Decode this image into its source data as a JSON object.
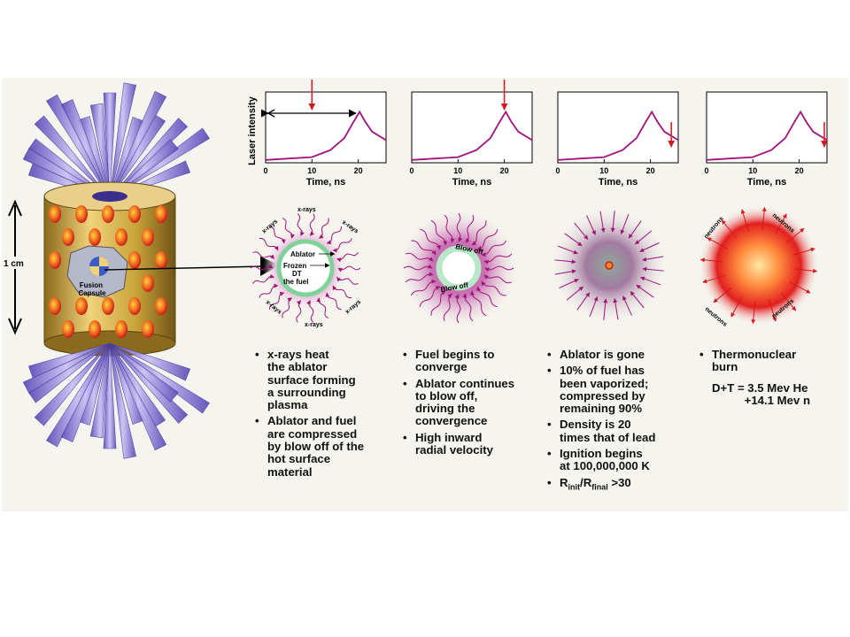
{
  "hohlraum": {
    "size_label": "1 cm",
    "capsule_label": "Fusion Capsule"
  },
  "plots": [
    {
      "ylabel": "Laser intensity",
      "xlabel": "Time, ns",
      "ticks": [
        "0",
        "10",
        "20"
      ],
      "marker_time": 10,
      "has_range_arrow": true
    },
    {
      "ylabel": "",
      "xlabel": "Time, ns",
      "ticks": [
        "0",
        "10",
        "20"
      ],
      "marker_time": 20,
      "has_range_arrow": false
    },
    {
      "ylabel": "",
      "xlabel": "Time, ns",
      "ticks": [
        "0",
        "10",
        "20"
      ],
      "marker_time": 24.5,
      "has_range_arrow": false
    },
    {
      "ylabel": "",
      "xlabel": "Time, ns",
      "ticks": [
        "0",
        "10",
        "20"
      ],
      "marker_time": 25.5,
      "has_range_arrow": false
    }
  ],
  "pulse_shape": {
    "x": [
      0,
      5,
      10,
      14,
      17,
      19,
      20.3,
      21.5,
      23,
      26
    ],
    "y": [
      0.04,
      0.06,
      0.08,
      0.18,
      0.35,
      0.58,
      0.72,
      0.58,
      0.44,
      0.32
    ]
  },
  "stages": {
    "stage1": {
      "xray_labels": [
        "x-rays",
        "x-rays",
        "x-rays",
        "x-rays",
        "x-rays",
        "x-rays"
      ],
      "ablator_label": "Ablator",
      "fuel_label": "Frozen\nDT\nthe fuel"
    },
    "stage2": {
      "blowoff_top": "Blow off",
      "blowoff_bottom": "Blow off"
    },
    "stage4": {
      "neutron_labels": [
        "neutrons",
        "neutrons",
        "neutrons",
        "neutrons"
      ]
    }
  },
  "bullets": {
    "col1": [
      "x-rays heat\nthe ablator\nsurface forming\na surrounding\nplasma",
      "Ablator and fuel\nare compressed\nby blow off of the\nhot surface\nmaterial"
    ],
    "col2": [
      "Fuel begins to\nconverge",
      "Ablator continues\nto blow off,\ndriving the\nconvergence",
      "High inward\nradial velocity"
    ],
    "col3": [
      "Ablator is gone",
      "10% of fuel has\nbeen vaporized;\ncompressed by\nremaining 90%",
      "Density is 20\ntimes that of lead",
      "Ignition begins\nat 100,000,000 K"
    ],
    "col3_ratio": {
      "r": "R",
      "init": "init",
      "final": "final",
      "tail": ">30"
    },
    "col4": [
      "Thermonuclear\nburn"
    ],
    "col4_eqn": "D+T = 3.5 Mev He\n          +14.1 Mev n"
  },
  "colors": {
    "curve": "#a0137e",
    "marker": "#e01e26",
    "gold": "#c9a33a",
    "hole": "#e23a2a",
    "beam": "#8f7fd8",
    "ring": "#b9e8c8",
    "magenta": "#a01478"
  }
}
